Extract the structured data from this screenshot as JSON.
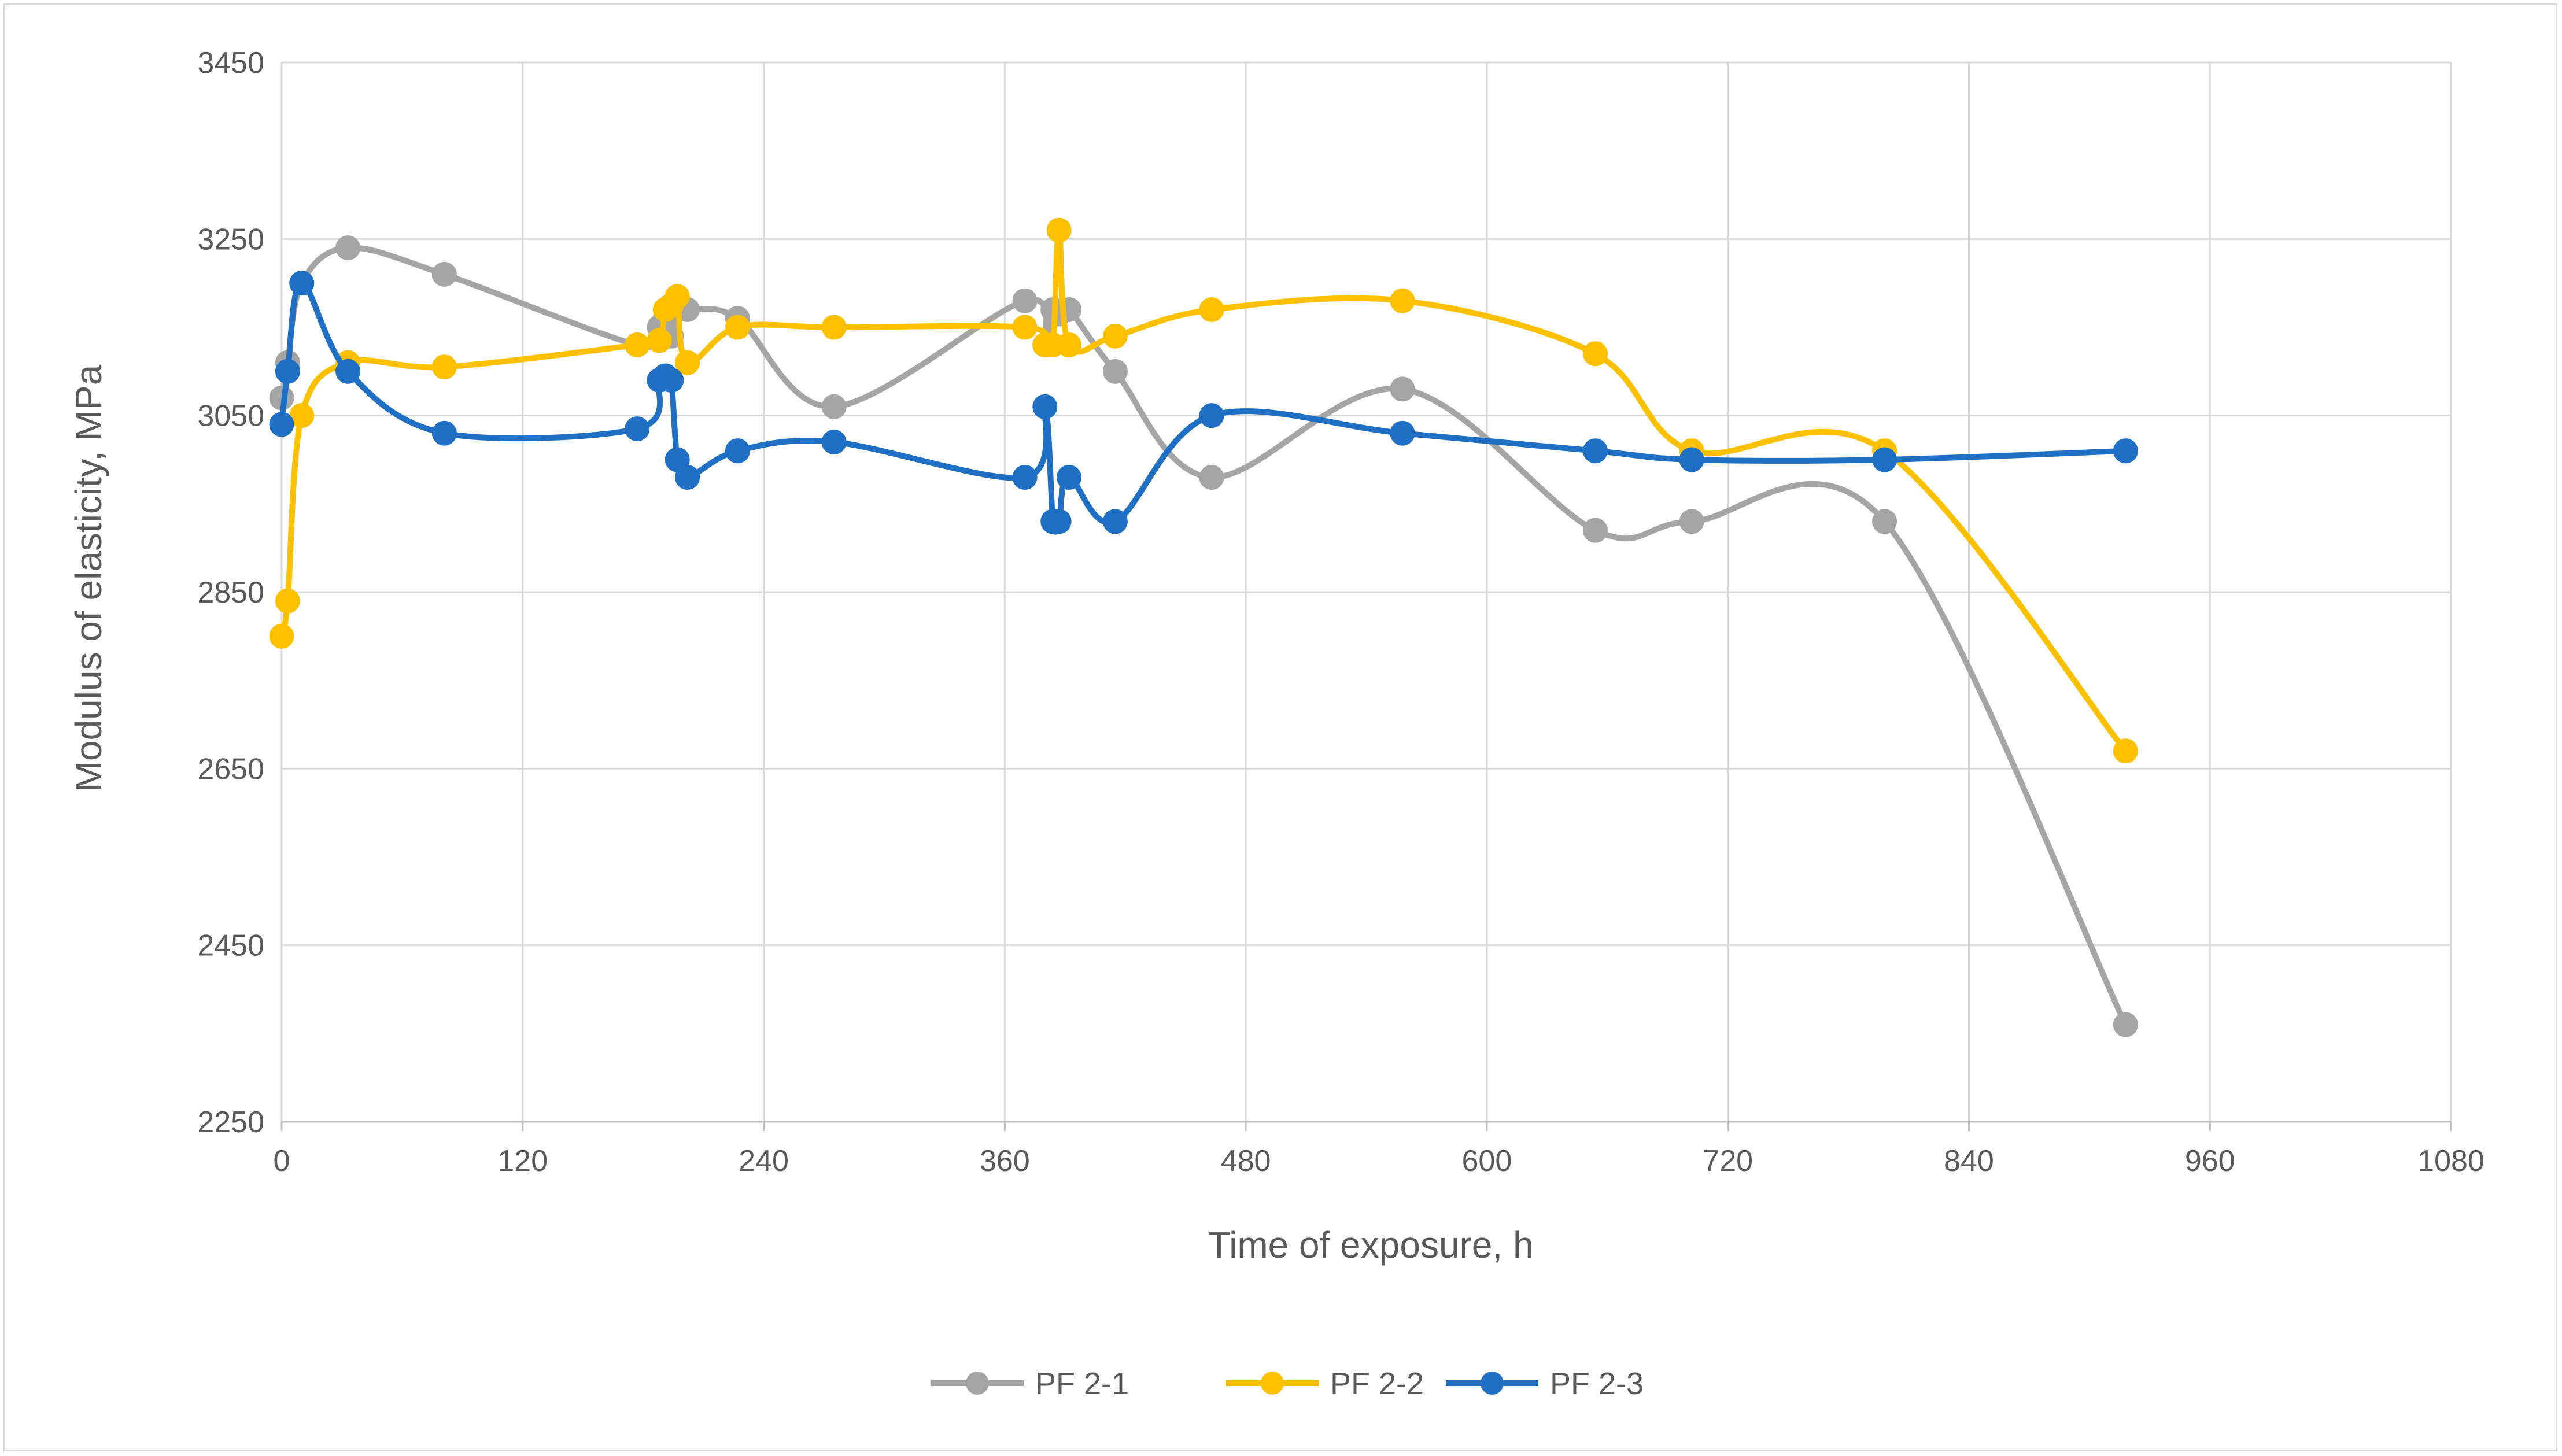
{
  "chart_data": {
    "type": "line",
    "title": "",
    "xlabel": "Time of exposure, h",
    "ylabel": "Modulus of elasticity, MPa",
    "xlim": [
      0,
      1080
    ],
    "ylim": [
      2250,
      3450
    ],
    "xticks": [
      0,
      120,
      240,
      360,
      480,
      600,
      720,
      840,
      960,
      1080
    ],
    "yticks": [
      2250,
      2450,
      2650,
      2850,
      3050,
      3250,
      3450
    ],
    "grid": true,
    "legend": "bottom-center",
    "smooth": true,
    "series": [
      {
        "name": "PF 2-1",
        "color": "#a5a5a5",
        "x": [
          0,
          3,
          10,
          33,
          81,
          177,
          188,
          191,
          194,
          197,
          202,
          227,
          275,
          370,
          380,
          384,
          387,
          392,
          415,
          463,
          558,
          654,
          702,
          798,
          918
        ],
        "y": [
          3070,
          3110,
          3200,
          3240,
          3210,
          3130,
          3150,
          3160,
          3140,
          3175,
          3170,
          3160,
          3060,
          3180,
          3130,
          3170,
          3165,
          3170,
          3100,
          2980,
          3080,
          2920,
          2930,
          2930,
          2360
        ]
      },
      {
        "name": "PF 2-2",
        "color": "#ffc000",
        "x": [
          0,
          3,
          10,
          33,
          81,
          177,
          188,
          191,
          194,
          197,
          202,
          227,
          275,
          370,
          380,
          384,
          387,
          392,
          415,
          463,
          558,
          654,
          702,
          798,
          918
        ],
        "y": [
          2800,
          2840,
          3050,
          3110,
          3105,
          3130,
          3135,
          3170,
          3175,
          3185,
          3110,
          3150,
          3150,
          3150,
          3130,
          3130,
          3260,
          3130,
          3140,
          3170,
          3180,
          3120,
          3010,
          3010,
          2670
        ]
      },
      {
        "name": "PF 2-3",
        "color": "#1f6fc5",
        "x": [
          0,
          3,
          10,
          33,
          81,
          177,
          188,
          191,
          194,
          197,
          202,
          227,
          275,
          370,
          380,
          384,
          387,
          392,
          415,
          463,
          558,
          654,
          702,
          798,
          918
        ],
        "y": [
          3040,
          3100,
          3200,
          3100,
          3030,
          3035,
          3090,
          3095,
          3090,
          3000,
          2980,
          3010,
          3020,
          2980,
          3060,
          2930,
          2930,
          2980,
          2930,
          3050,
          3030,
          3010,
          3000,
          3000,
          3010
        ]
      }
    ]
  }
}
